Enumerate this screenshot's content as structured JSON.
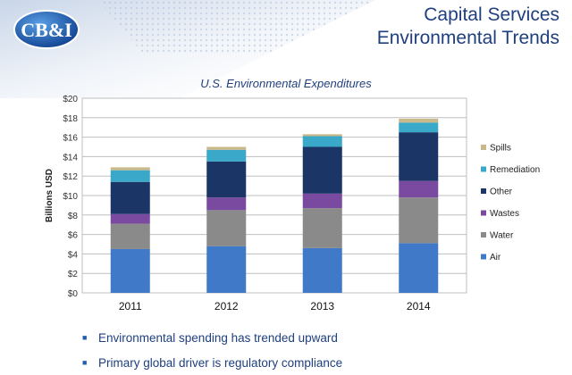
{
  "header": {
    "logo_text": "CB&I",
    "title_line1": "Capital Services",
    "title_line2": "Environmental Trends"
  },
  "chart_data": {
    "type": "bar",
    "stacked": true,
    "title": "U.S. Environmental Expenditures",
    "xlabel": "",
    "ylabel": "Billions USD",
    "categories": [
      "2011",
      "2012",
      "2013",
      "2014"
    ],
    "ylim": [
      0,
      20
    ],
    "yticks": [
      0,
      2,
      4,
      6,
      8,
      10,
      12,
      14,
      16,
      18,
      20
    ],
    "ytick_labels": [
      "$0",
      "$2",
      "$4",
      "$6",
      "$8",
      "$10",
      "$12",
      "$14",
      "$16",
      "$18",
      "$20"
    ],
    "grid": true,
    "legend_position": "right",
    "series": [
      {
        "name": "Air",
        "color": "#3f79c8",
        "values": [
          4.5,
          4.8,
          4.6,
          5.1
        ]
      },
      {
        "name": "Water",
        "color": "#8a8a8a",
        "values": [
          2.6,
          3.7,
          4.1,
          4.7
        ]
      },
      {
        "name": "Wastes",
        "color": "#7a4aa0",
        "values": [
          1.0,
          1.3,
          1.5,
          1.7
        ]
      },
      {
        "name": "Other",
        "color": "#1a3566",
        "values": [
          3.3,
          3.7,
          4.8,
          5.0
        ]
      },
      {
        "name": "Remediation",
        "color": "#3aa8c8",
        "values": [
          1.2,
          1.2,
          1.1,
          1.0
        ]
      },
      {
        "name": "Spills",
        "color": "#c9b98a",
        "values": [
          0.3,
          0.3,
          0.2,
          0.4
        ]
      }
    ]
  },
  "bullets": [
    "Environmental spending has trended upward",
    "Primary global driver is regulatory compliance"
  ],
  "colors": {
    "title": "#1f3f7f",
    "accent": "#1f5fb0"
  }
}
